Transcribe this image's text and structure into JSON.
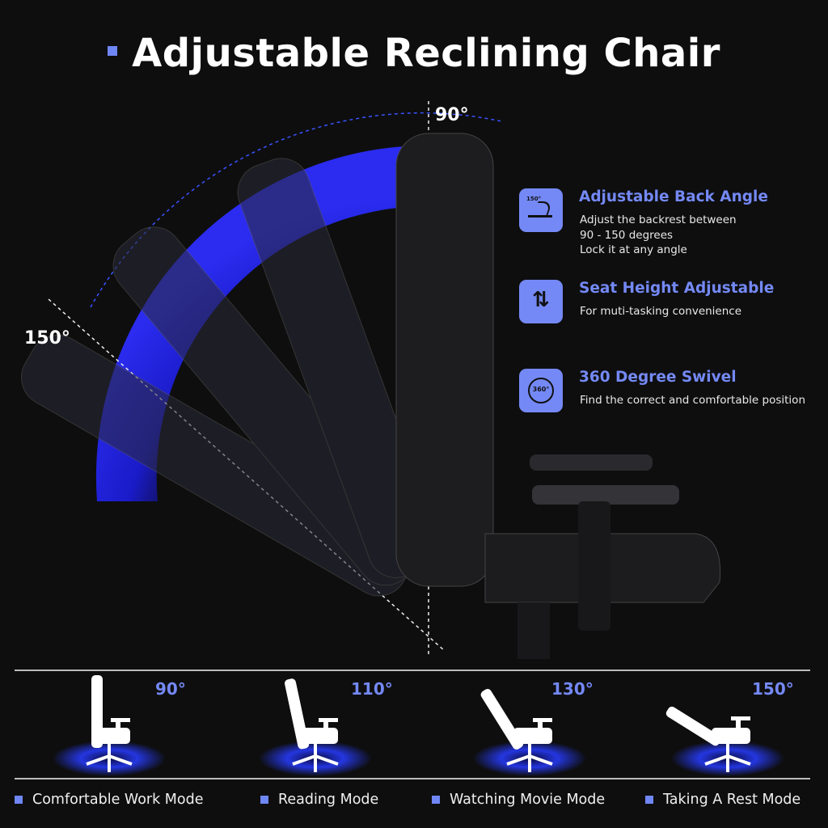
{
  "title": "Adjustable Reclining Chair",
  "main_angles": {
    "upright": "90°",
    "reclined": "150°"
  },
  "features": [
    {
      "icon": "backrest-angle-icon",
      "icon_text": "150°",
      "title": "Adjustable Back Angle",
      "lines": [
        "Adjust the backrest between",
        "90 - 150 degrees",
        "Lock it at any angle"
      ]
    },
    {
      "icon": "height-arrows-icon",
      "title": "Seat Height Adjustable",
      "lines": [
        "For muti-tasking convenience"
      ]
    },
    {
      "icon": "swivel-360-icon",
      "icon_text": "360°",
      "title": "360 Degree Swivel",
      "lines": [
        "Find the correct and comfortable position"
      ]
    }
  ],
  "modes": [
    {
      "angle": "90°",
      "label": "Comfortable Work Mode"
    },
    {
      "angle": "110°",
      "label": "Reading Mode"
    },
    {
      "angle": "130°",
      "label": "Watching Movie Mode"
    },
    {
      "angle": "150°",
      "label": "Taking A Rest Mode"
    }
  ],
  "colors": {
    "accent": "#7489f5",
    "arc_blue": "#1f22e0",
    "background": "#0e0e0f"
  }
}
